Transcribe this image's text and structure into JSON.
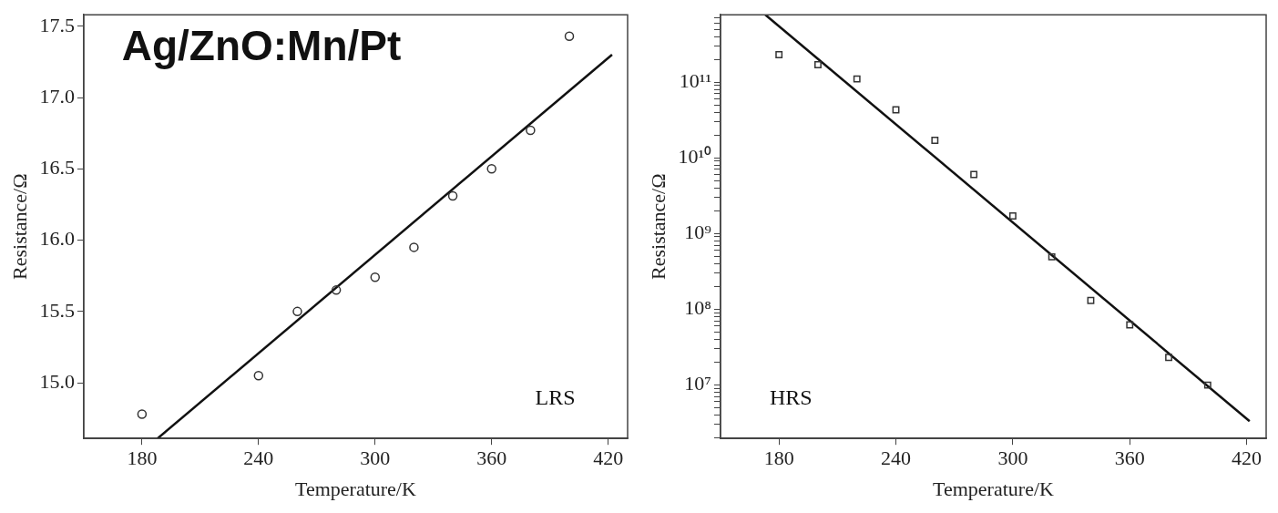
{
  "chart_data": [
    {
      "type": "scatter",
      "xlabel": "Temperature/K",
      "ylabel": "Resistance/Ω",
      "annotations": [
        "Ag/ZnO:Mn/Pt",
        "LRS"
      ],
      "xlim": [
        150,
        430
      ],
      "xticks": [
        180,
        240,
        300,
        360,
        420
      ],
      "ylim": [
        14.61,
        17.58
      ],
      "yticks": [
        {
          "value": 15,
          "label": "15.0"
        },
        15.5,
        {
          "value": 16,
          "label": "16.0"
        },
        16.5,
        {
          "value": 17,
          "label": "17.0"
        },
        17.5
      ],
      "series": [
        {
          "marker": "circle",
          "color": "#333333",
          "x": [
            180,
            240,
            260,
            280,
            300,
            320,
            340,
            360,
            380,
            400
          ],
          "values": [
            14.78,
            15.05,
            15.5,
            15.65,
            15.74,
            15.95,
            16.31,
            16.5,
            16.77,
            17.43
          ]
        },
        {
          "type": "line",
          "marker": "none",
          "color": "#111111",
          "x": [
            188,
            422
          ],
          "values": [
            14.61,
            17.3
          ]
        }
      ]
    },
    {
      "type": "scatter",
      "xlabel": "Temperature/K",
      "ylabel": "Resistance/Ω",
      "annotations": [
        "HRS"
      ],
      "log": "y",
      "xlim": [
        150,
        430
      ],
      "xticks": [
        180,
        240,
        300,
        360,
        420
      ],
      "ylim": [
        1950000,
        776000000000
      ],
      "yticks": [
        {
          "value": 2000000,
          "label": null
        },
        {
          "value": 3000000,
          "label": null
        },
        {
          "value": 4000000,
          "label": null
        },
        {
          "value": 5000000,
          "label": null
        },
        {
          "value": 6000000,
          "label": null
        },
        {
          "value": 7000000,
          "label": null
        },
        {
          "value": 8000000,
          "label": null
        },
        {
          "value": 9000000,
          "label": null
        },
        {
          "value": 10000000,
          "label": "10⁷"
        },
        {
          "value": 20000000,
          "label": null
        },
        {
          "value": 30000000,
          "label": null
        },
        {
          "value": 40000000,
          "label": null
        },
        {
          "value": 50000000,
          "label": null
        },
        {
          "value": 60000000,
          "label": null
        },
        {
          "value": 70000000,
          "label": null
        },
        {
          "value": 80000000,
          "label": null
        },
        {
          "value": 90000000,
          "label": null
        },
        {
          "value": 100000000,
          "label": "10⁸"
        },
        {
          "value": 200000000,
          "label": null
        },
        {
          "value": 300000000,
          "label": null
        },
        {
          "value": 400000000,
          "label": null
        },
        {
          "value": 500000000,
          "label": null
        },
        {
          "value": 600000000,
          "label": null
        },
        {
          "value": 700000000,
          "label": null
        },
        {
          "value": 800000000,
          "label": null
        },
        {
          "value": 900000000,
          "label": null
        },
        {
          "value": 1000000000,
          "label": "10⁹"
        },
        {
          "value": 2000000000,
          "label": null
        },
        {
          "value": 3000000000,
          "label": null
        },
        {
          "value": 4000000000,
          "label": null
        },
        {
          "value": 5000000000,
          "label": null
        },
        {
          "value": 6000000000,
          "label": null
        },
        {
          "value": 7000000000,
          "label": null
        },
        {
          "value": 8000000000,
          "label": null
        },
        {
          "value": 9000000000,
          "label": null
        },
        {
          "value": 10000000000,
          "label": "10¹⁰"
        },
        {
          "value": 20000000000,
          "label": null
        },
        {
          "value": 30000000000,
          "label": null
        },
        {
          "value": 40000000000,
          "label": null
        },
        {
          "value": 50000000000,
          "label": null
        },
        {
          "value": 60000000000,
          "label": null
        },
        {
          "value": 70000000000,
          "label": null
        },
        {
          "value": 80000000000,
          "label": null
        },
        {
          "value": 90000000000,
          "label": null
        },
        {
          "value": 100000000000,
          "label": "10¹¹"
        },
        {
          "value": 200000000000,
          "label": null
        },
        {
          "value": 300000000000,
          "label": null
        },
        {
          "value": 400000000000,
          "label": null
        },
        {
          "value": 500000000000,
          "label": null
        },
        {
          "value": 600000000000,
          "label": null
        },
        {
          "value": 700000000000,
          "label": null
        }
      ],
      "series": [
        {
          "marker": "square",
          "color": "#333333",
          "x": [
            180,
            200,
            220,
            240,
            260,
            280,
            300,
            320,
            340,
            360,
            380,
            400
          ],
          "values": [
            230000000000,
            170000000000,
            110000000000,
            43000000000,
            17000000000,
            6000000000,
            1700000000,
            490000000,
            130000000,
            62000000,
            23000000,
            9900000
          ]
        },
        {
          "type": "line",
          "marker": "none",
          "color": "#111111",
          "x": [
            173,
            421.5
          ],
          "values": [
            776000000000,
            3300000
          ]
        }
      ]
    }
  ]
}
